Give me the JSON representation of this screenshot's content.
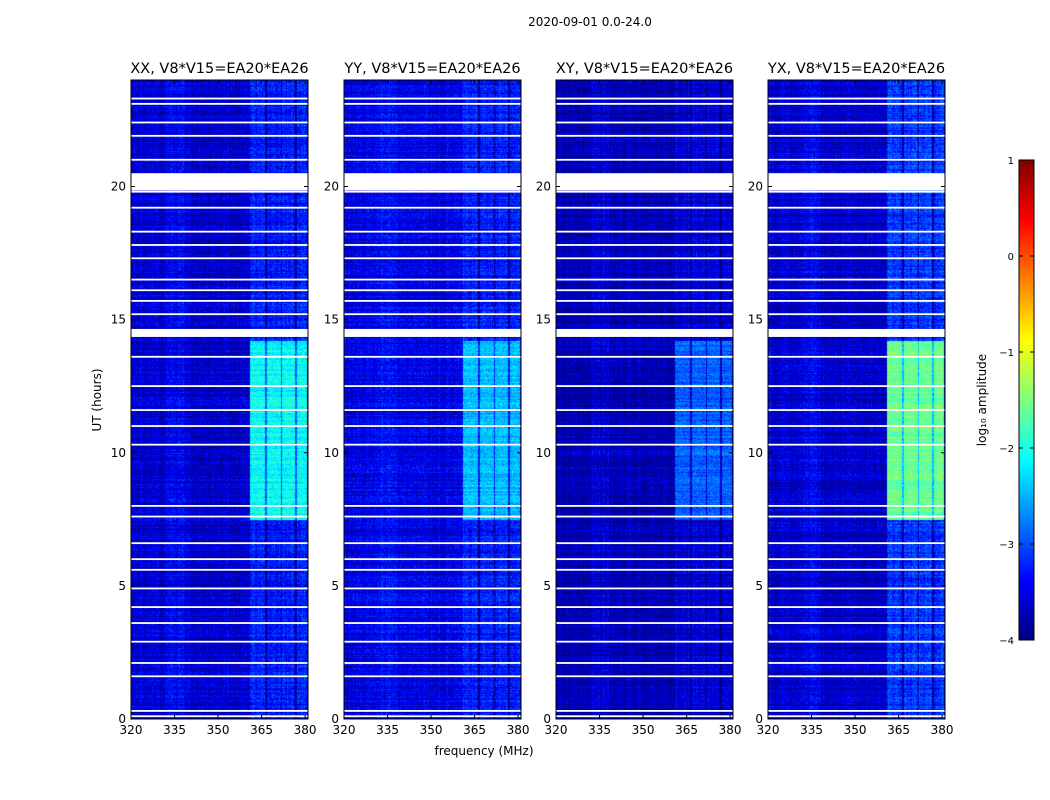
{
  "chart_data": {
    "type": "heatmap",
    "suptitle": "2020-09-01 0.0-24.0",
    "xlabel": "frequency (MHz)",
    "ylabel": "UT (hours)",
    "xlim": [
      320,
      381
    ],
    "ylim": [
      0,
      24
    ],
    "xticks": [
      320,
      335,
      350,
      365,
      380
    ],
    "yticks": [
      0,
      5,
      10,
      15,
      20
    ],
    "xtick_labels": [
      "320",
      "335",
      "350",
      "365",
      "380"
    ],
    "ytick_labels": [
      "0",
      "5",
      "10",
      "15",
      "20"
    ],
    "panels": [
      {
        "title": "XX, V8*V15=EA20*EA26",
        "base_level": -3.6,
        "band_level": -2.1,
        "band_rise": 0.35
      },
      {
        "title": "YY, V8*V15=EA20*EA26",
        "base_level": -3.5,
        "band_level": -2.45,
        "band_rise": 0.25
      },
      {
        "title": "XY, V8*V15=EA20*EA26",
        "base_level": -3.75,
        "band_level": -2.9,
        "band_rise": 0.2
      },
      {
        "title": "YX, V8*V15=EA20*EA26",
        "base_level": -3.6,
        "band_level": -1.6,
        "band_rise": 0.5
      }
    ],
    "band_mhz": [
      361,
      380.5
    ],
    "band_active_hours": [
      7.5,
      14.2
    ],
    "flagged_hours": [
      0.1,
      0.3,
      1.6,
      2.1,
      2.9,
      3.6,
      4.2,
      4.9,
      5.6,
      6.0,
      6.6,
      7.6,
      8.0,
      10.3,
      11.0,
      11.6,
      12.5,
      13.6,
      14.5,
      15.2,
      15.7,
      16.1,
      16.5,
      17.3,
      17.8,
      18.3,
      19.2,
      19.8,
      20.1,
      20.3,
      21.0,
      21.9,
      22.4,
      23.1,
      23.3
    ],
    "flag_blocks_hours": [
      [
        14.35,
        14.65
      ],
      [
        19.85,
        20.5
      ]
    ],
    "colorbar": {
      "label": "log₁₀ amplitude",
      "range": [
        -4,
        1
      ],
      "ticks": [
        1,
        0,
        -1,
        -2,
        -3,
        -4
      ],
      "tick_labels": [
        "1",
        "0",
        "−1",
        "−2",
        "−3",
        "−4"
      ],
      "colormap": "jet",
      "jet_stops": [
        "#00007f",
        "#0000ff",
        "#007fff",
        "#00ffff",
        "#7fff7f",
        "#ffff00",
        "#ff7f00",
        "#ff0000",
        "#7f0000"
      ]
    }
  }
}
